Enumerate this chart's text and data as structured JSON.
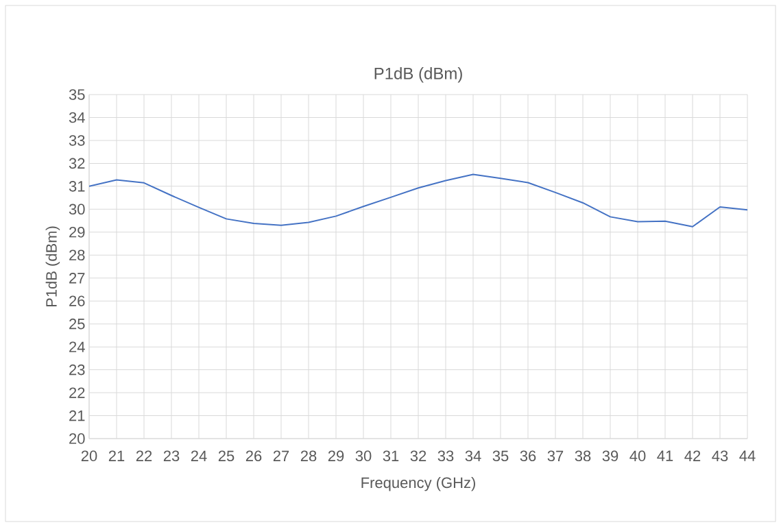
{
  "chart_data": {
    "type": "line",
    "title": "P1dB (dBm)",
    "xlabel": "Frequency (GHz)",
    "ylabel": "P1dB (dBm)",
    "x": [
      20,
      21,
      22,
      23,
      24,
      25,
      26,
      27,
      28,
      29,
      30,
      31,
      32,
      33,
      34,
      35,
      36,
      37,
      38,
      39,
      40,
      41,
      42,
      43,
      44
    ],
    "series": [
      {
        "color": "#4472c4",
        "values": [
          31.0,
          31.28,
          31.15,
          30.6,
          30.08,
          29.58,
          29.38,
          29.3,
          29.43,
          29.7,
          30.12,
          30.52,
          30.93,
          31.25,
          31.52,
          31.35,
          31.16,
          30.73,
          30.28,
          29.67,
          29.46,
          29.48,
          29.24,
          30.1,
          29.97
        ]
      }
    ],
    "xlim": [
      20,
      44
    ],
    "xticks": [
      20,
      21,
      22,
      23,
      24,
      25,
      26,
      27,
      28,
      29,
      30,
      31,
      32,
      33,
      34,
      35,
      36,
      37,
      38,
      39,
      40,
      41,
      42,
      43,
      44
    ],
    "ylim": [
      20,
      35
    ],
    "yticks": [
      20,
      21,
      22,
      23,
      24,
      25,
      26,
      27,
      28,
      29,
      30,
      31,
      32,
      33,
      34,
      35
    ],
    "grid": true,
    "legend": false,
    "marker": "none",
    "line_style": "solid"
  }
}
